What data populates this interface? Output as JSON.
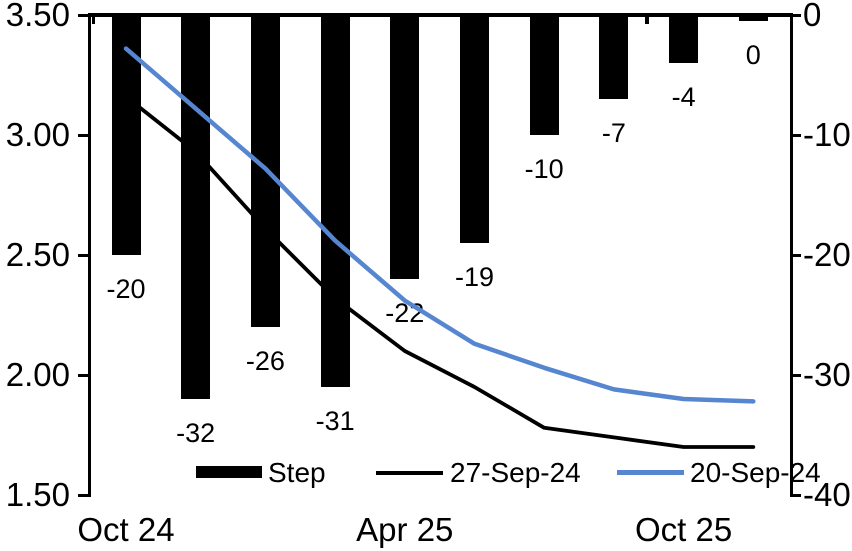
{
  "chart_data": {
    "type": "combo-bar-line",
    "title": "",
    "background": "#FFFFFF",
    "grid": "off",
    "num_slots": 10,
    "x_axis": {
      "visible_labels": [
        {
          "slot": 0,
          "text": "Oct 24"
        },
        {
          "slot": 4,
          "text": "Apr 25"
        },
        {
          "slot": 8,
          "text": "Oct 25"
        }
      ]
    },
    "left_axis": {
      "ticks": [
        "3.50",
        "3.00",
        "2.50",
        "2.00",
        "1.50"
      ],
      "max": 3.5,
      "min": 1.5
    },
    "right_axis": {
      "ticks": [
        "0",
        "-10",
        "-20",
        "-30",
        "-40"
      ],
      "max": 0,
      "min": -40
    },
    "bar_series": {
      "name": "Step",
      "axis": "right",
      "color": "#000000",
      "values": [
        -20,
        -32,
        -26,
        -31,
        -22,
        -19,
        -10,
        -7,
        -4,
        -0.5
      ],
      "data_labels": [
        "-20",
        "-32",
        "-26",
        "-31",
        "-22",
        "-19",
        "-10",
        "-7",
        "-4",
        "0"
      ]
    },
    "line_series": [
      {
        "name": "27-Sep-24",
        "axis": "left",
        "color": "#000000",
        "values": [
          3.16,
          2.93,
          2.61,
          2.32,
          2.1,
          1.95,
          1.78,
          1.74,
          1.7,
          1.7
        ]
      },
      {
        "name": "20-Sep-24",
        "axis": "left",
        "color": "#5786D1",
        "values": [
          3.36,
          3.11,
          2.86,
          2.56,
          2.31,
          2.13,
          2.03,
          1.94,
          1.9,
          1.89
        ]
      }
    ],
    "legend": {
      "position": "bottom-inside",
      "items": [
        "Step",
        "27-Sep-24",
        "20-Sep-24"
      ]
    }
  }
}
